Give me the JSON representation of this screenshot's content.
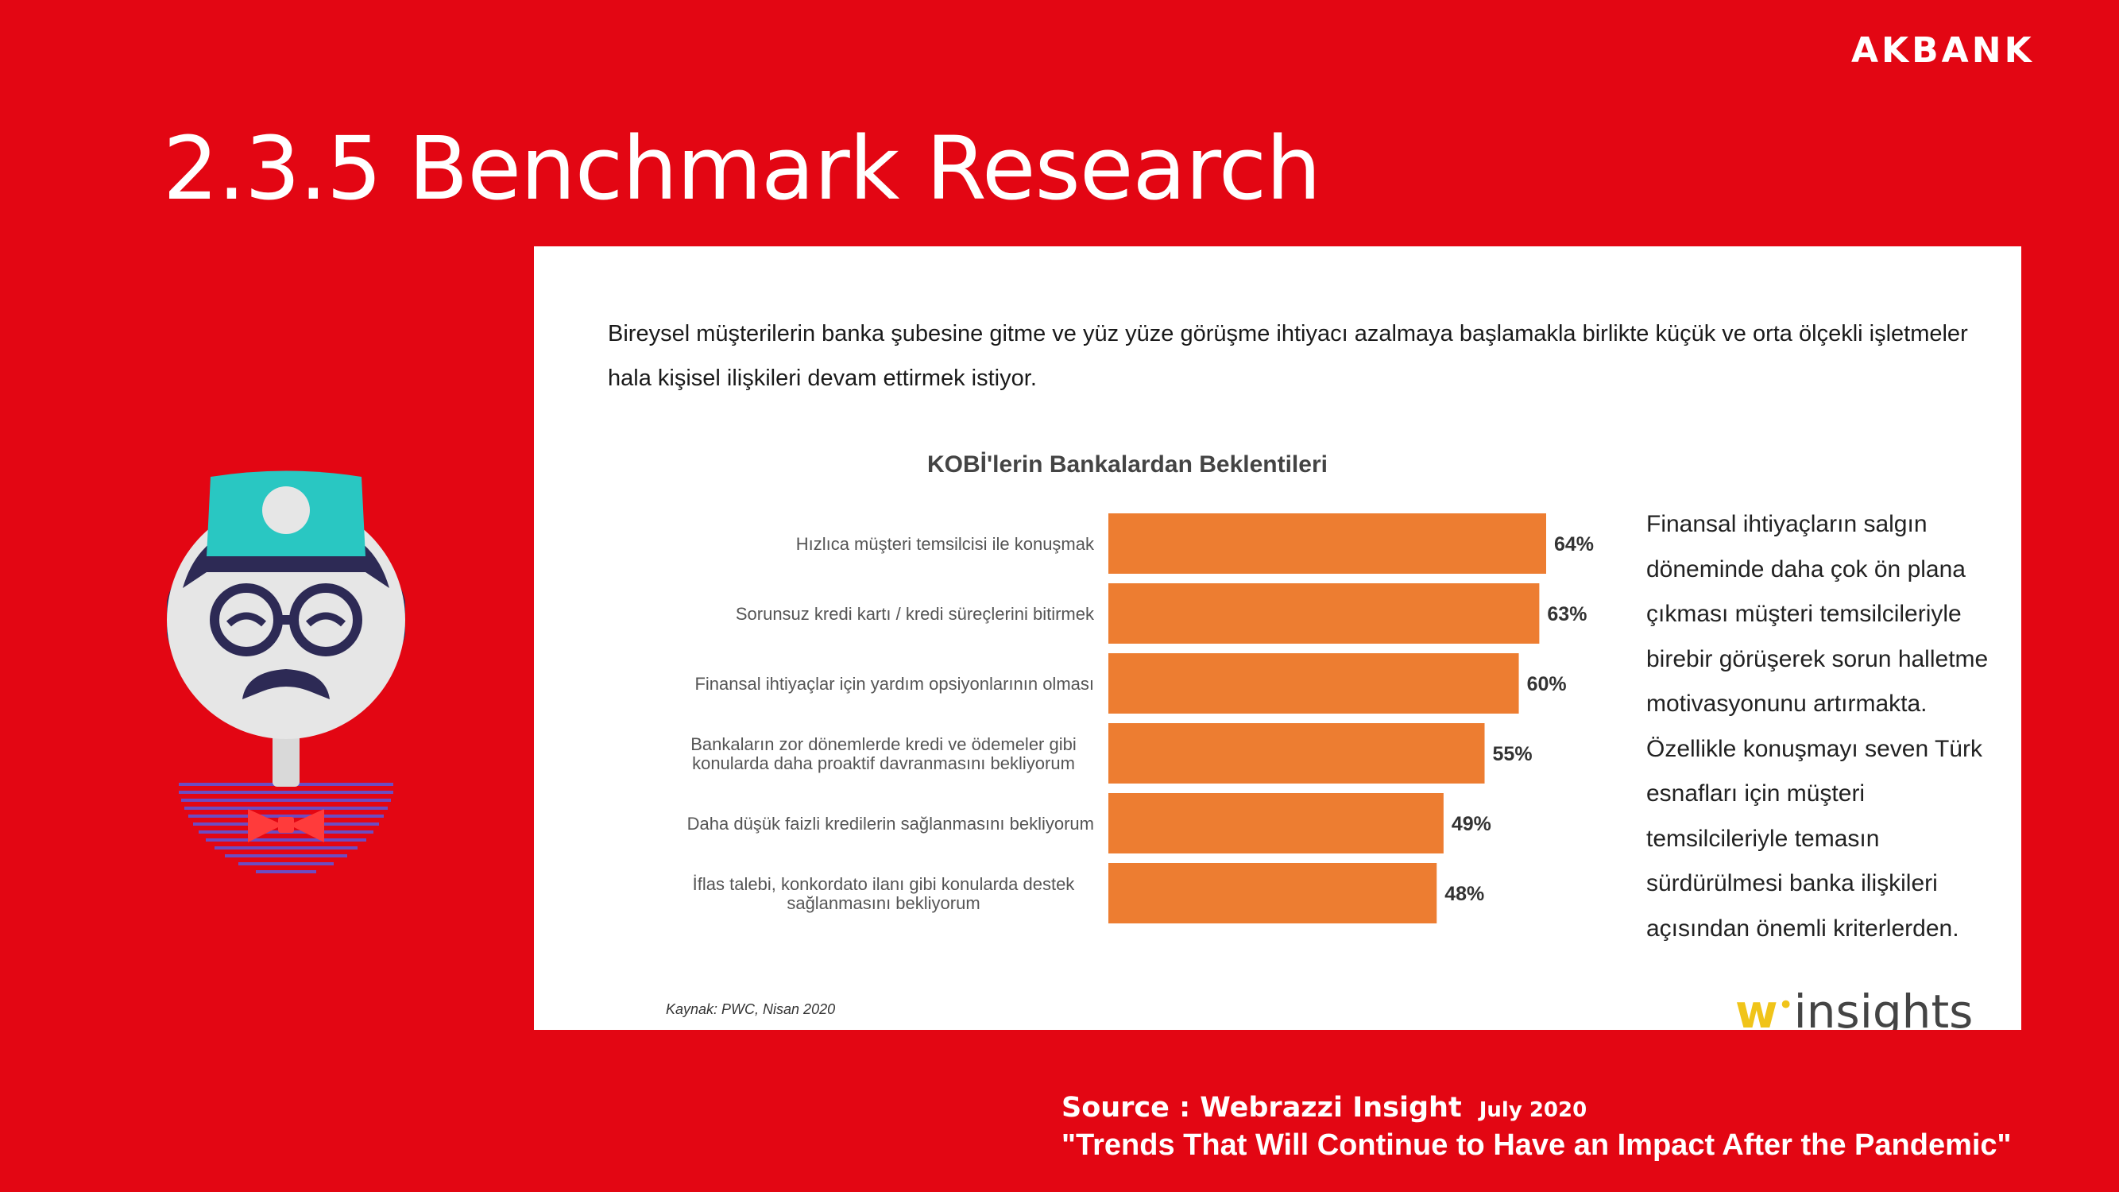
{
  "brand": "AKBANK",
  "slide": {
    "title": "2.3.5 Benchmark Research"
  },
  "panel": {
    "intro": "Bireysel müşterilerin banka şubesine gitme ve yüz yüze görüşme ihtiyacı azalmaya başlamakla birlikte küçük ve orta ölçekli işletmeler hala kişisel ilişkileri devam ettirmek istiyor.",
    "note": "Finansal ihtiyaçların salgın döneminde daha çok ön plana çıkması müşteri temsilcileriyle birebir görüşerek sorun halletme motivasyonunu artırmakta. Özellikle konuşmayı seven Türk esnafları için müşteri temsilcileriyle temasın sürdürülmesi banka ilişkileri açısından önemli kriterlerden.",
    "source": "Kaynak: PWC, Nisan 2020",
    "logo": {
      "w": "w",
      "text": "insights"
    }
  },
  "chart_data": {
    "type": "bar",
    "orientation": "horizontal",
    "title": "KOBİ'lerin Bankalardan Beklentileri",
    "categories": [
      [
        "Hızlıca müşteri temsilcisi ile konuşmak"
      ],
      [
        "Sorunsuz kredi kartı / kredi süreçlerini bitirmek"
      ],
      [
        "Finansal ihtiyaçlar için yardım opsiyonlarının olması"
      ],
      [
        "Bankaların zor dönemlerde kredi ve ödemeler gibi",
        "konularda daha proaktif davranmasını bekliyorum"
      ],
      [
        "Daha düşük faizli kredilerin sağlanmasını bekliyorum"
      ],
      [
        "İflas talebi, konkordato ilanı gibi konularda destek",
        "sağlanmasını bekliyorum"
      ]
    ],
    "values": [
      64,
      63,
      60,
      55,
      49,
      48
    ],
    "value_labels": [
      "64%",
      "63%",
      "60%",
      "55%",
      "49%",
      "48%"
    ],
    "bar_color": "#ed7d31",
    "xlim": [
      0,
      70
    ],
    "grid": false
  },
  "footer": {
    "source": "Source : Webrazzi Insight",
    "date": "July 2020",
    "quote": "\"Trends That Will Continue to Have an Impact After the Pandemic\""
  },
  "colors": {
    "background": "#e30613",
    "panel": "#ffffff",
    "bar": "#ed7d31"
  }
}
